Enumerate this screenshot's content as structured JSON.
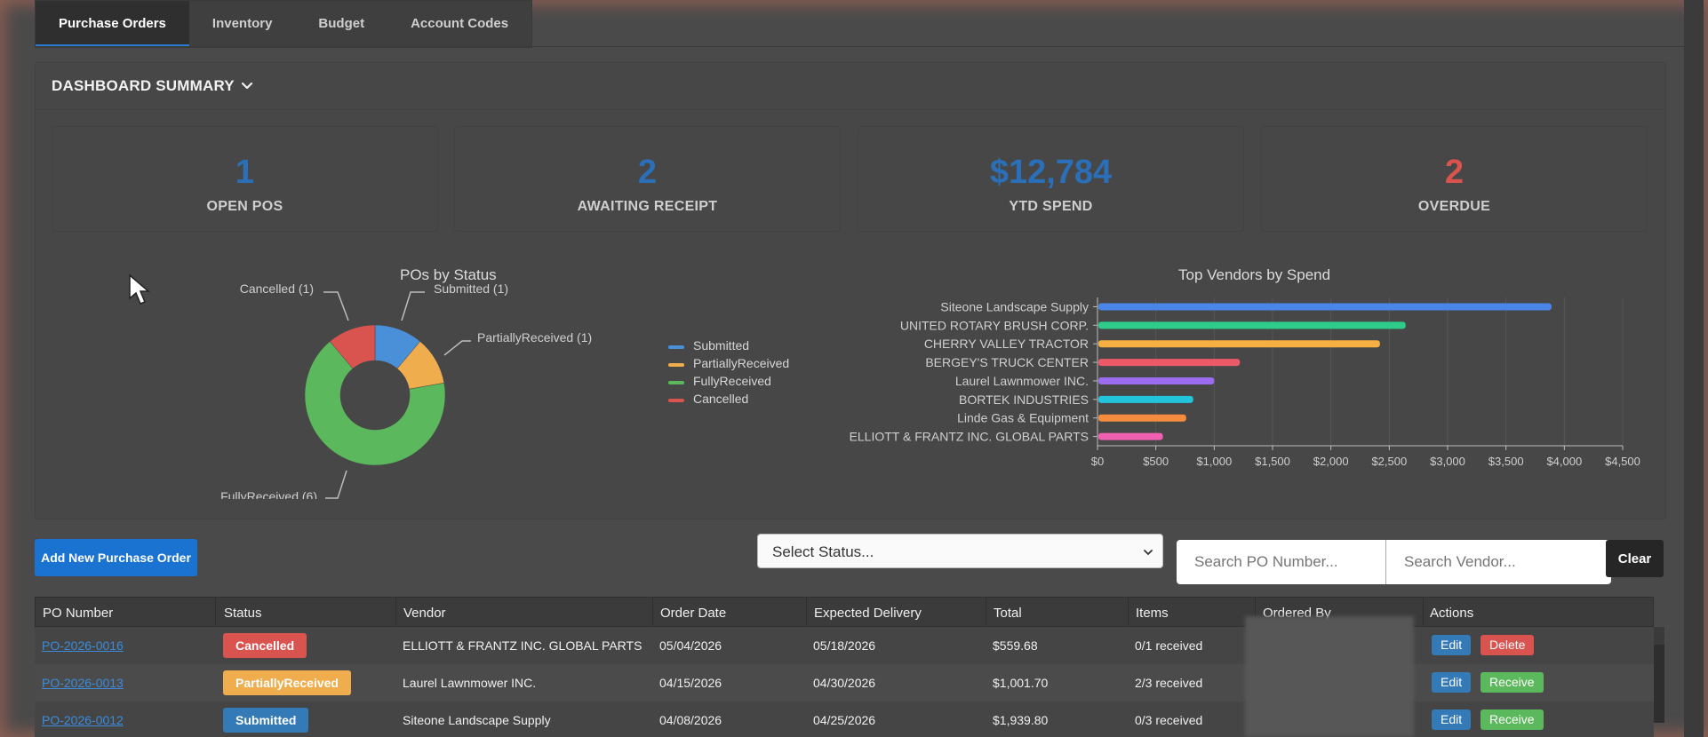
{
  "tabs": [
    {
      "label": "Purchase Orders",
      "active": true
    },
    {
      "label": "Inventory",
      "active": false
    },
    {
      "label": "Budget",
      "active": false
    },
    {
      "label": "Account Codes",
      "active": false
    }
  ],
  "summary": {
    "title": "DASHBOARD SUMMARY",
    "chevron_icon": "chevron-down-icon",
    "stats": [
      {
        "value": "1",
        "label": "OPEN POS",
        "color": "#2a6fb8"
      },
      {
        "value": "2",
        "label": "AWAITING RECEIPT",
        "color": "#2a6fb8"
      },
      {
        "value": "$12,784",
        "label": "YTD SPEND",
        "color": "#2a6fb8"
      },
      {
        "value": "2",
        "label": "OVERDUE",
        "color": "#d9534f"
      }
    ]
  },
  "chart_data": [
    {
      "type": "pie",
      "title": "POs by Status",
      "labels": [
        "Submitted",
        "PartiallyReceived",
        "FullyReceived",
        "Cancelled"
      ],
      "values": [
        1,
        1,
        6,
        1
      ],
      "slice_labels": [
        "Submitted (1)",
        "PartiallyReceived (1)",
        "FullyReceived (6)",
        "Cancelled (1)"
      ],
      "colors": [
        "#4a90d9",
        "#f0ad4e",
        "#5cb85c",
        "#d9534f"
      ],
      "legend_position": "right"
    },
    {
      "type": "bar",
      "orientation": "horizontal",
      "title": "Top Vendors by Spend",
      "categories": [
        "Siteone Landscape Supply",
        "UNITED ROTARY BRUSH CORP.",
        "CHERRY VALLEY TRACTOR",
        "BERGEY'S TRUCK CENTER",
        "Laurel Lawnmower INC.",
        "BORTEK INDUSTRIES",
        "Linde Gas & Equipment",
        "ELLIOTT & FRANTZ INC. GLOBAL PARTS"
      ],
      "values": [
        3890,
        2640,
        2420,
        1220,
        1000,
        820,
        760,
        560
      ],
      "colors": [
        "#4a86e8",
        "#2ecc8a",
        "#f5b041",
        "#ec5a6a",
        "#9b6cf0",
        "#22c4dc",
        "#f58b3d",
        "#f060b0"
      ],
      "xlim": [
        0,
        4500
      ],
      "xticks": [
        "$0",
        "$500",
        "$1,000",
        "$1,500",
        "$2,000",
        "$2,500",
        "$3,000",
        "$3,500",
        "$4,000",
        "$4,500"
      ],
      "grid": true
    }
  ],
  "controls": {
    "add_button": "Add New Purchase Order",
    "status_select": "Select Status...",
    "search_po_placeholder": "Search PO Number...",
    "search_vendor_placeholder": "Search Vendor...",
    "clear_button": "Clear"
  },
  "table": {
    "headers": [
      "PO Number",
      "Status",
      "Vendor",
      "Order Date",
      "Expected Delivery",
      "Total",
      "Items",
      "Ordered By",
      "Actions"
    ],
    "rows": [
      {
        "po": "PO-2026-0016",
        "status": "Cancelled",
        "vendor": "ELLIOTT & FRANTZ INC. GLOBAL PARTS",
        "order_date": "05/04/2026",
        "expected": "05/18/2026",
        "total": "$559.68",
        "items": "0/1 received",
        "actions": [
          "Edit",
          "Delete"
        ]
      },
      {
        "po": "PO-2026-0013",
        "status": "PartiallyReceived",
        "vendor": "Laurel Lawnmower INC.",
        "order_date": "04/15/2026",
        "expected": "04/30/2026",
        "total": "$1,001.70",
        "items": "2/3 received",
        "actions": [
          "Edit",
          "Receive"
        ]
      },
      {
        "po": "PO-2026-0012",
        "status": "Submitted",
        "vendor": "Siteone Landscape Supply",
        "order_date": "04/08/2026",
        "expected": "04/25/2026",
        "total": "$1,939.80",
        "items": "0/3 received",
        "actions": [
          "Edit",
          "Receive"
        ]
      }
    ]
  }
}
